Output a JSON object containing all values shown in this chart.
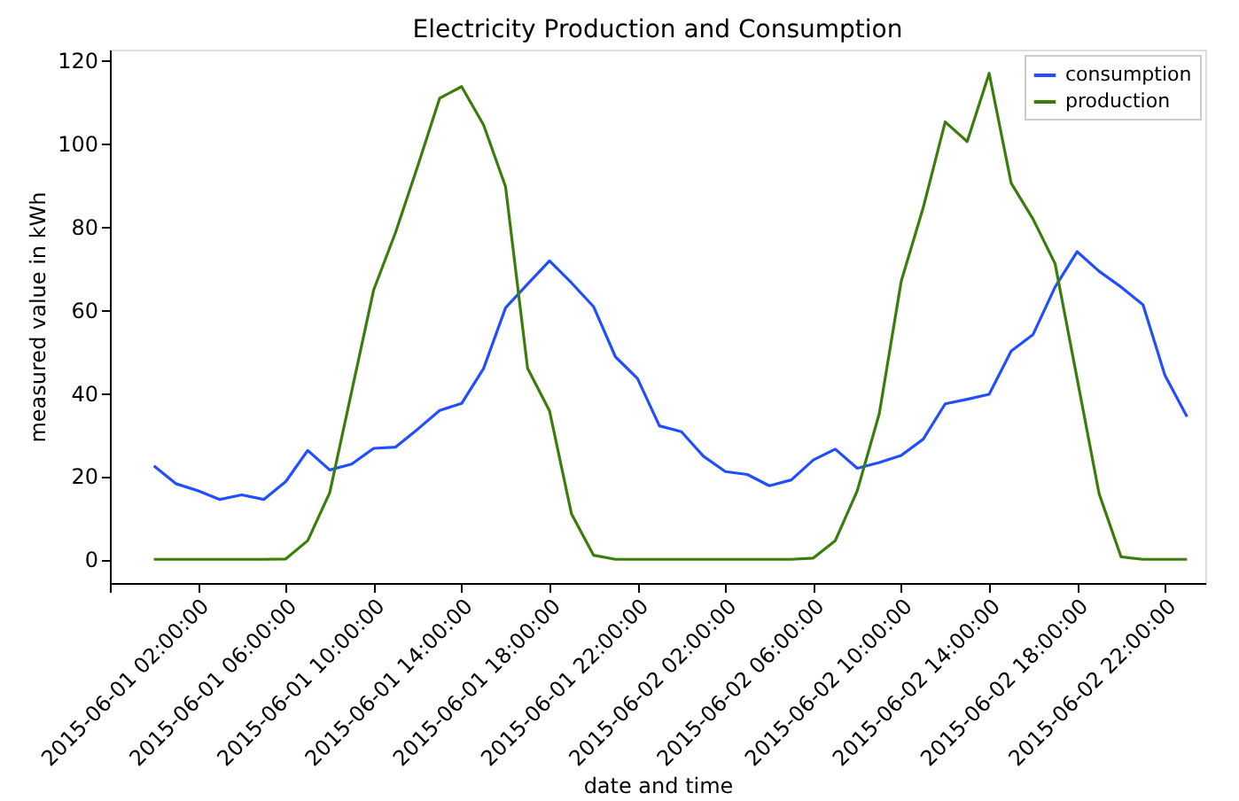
{
  "chart_data": {
    "type": "line",
    "title": "Electricity Production and Consumption",
    "xlabel": "date and time",
    "ylabel": "measured value in kWh",
    "x": [
      "2015-06-01T00:00",
      "2015-06-01T01:00",
      "2015-06-01T02:00",
      "2015-06-01T03:00",
      "2015-06-01T04:00",
      "2015-06-01T05:00",
      "2015-06-01T06:00",
      "2015-06-01T07:00",
      "2015-06-01T08:00",
      "2015-06-01T09:00",
      "2015-06-01T10:00",
      "2015-06-01T11:00",
      "2015-06-01T12:00",
      "2015-06-01T13:00",
      "2015-06-01T14:00",
      "2015-06-01T15:00",
      "2015-06-01T16:00",
      "2015-06-01T17:00",
      "2015-06-01T18:00",
      "2015-06-01T19:00",
      "2015-06-01T20:00",
      "2015-06-01T21:00",
      "2015-06-01T22:00",
      "2015-06-01T23:00",
      "2015-06-02T00:00",
      "2015-06-02T01:00",
      "2015-06-02T02:00",
      "2015-06-02T03:00",
      "2015-06-02T04:00",
      "2015-06-02T05:00",
      "2015-06-02T06:00",
      "2015-06-02T07:00",
      "2015-06-02T08:00",
      "2015-06-02T09:00",
      "2015-06-02T10:00",
      "2015-06-02T11:00",
      "2015-06-02T12:00",
      "2015-06-02T13:00",
      "2015-06-02T14:00",
      "2015-06-02T15:00",
      "2015-06-02T16:00",
      "2015-06-02T17:00",
      "2015-06-02T18:00",
      "2015-06-02T19:00",
      "2015-06-02T20:00",
      "2015-06-02T21:00",
      "2015-06-02T22:00",
      "2015-06-02T23:00"
    ],
    "series": [
      {
        "name": "consumption",
        "color": "#1f4fff",
        "values": [
          22.5,
          18.2,
          16.5,
          14.4,
          15.5,
          14.4,
          18.7,
          26.2,
          21.5,
          22.9,
          26.7,
          27.0,
          31.3,
          35.8,
          37.5,
          45.9,
          60.5,
          66.2,
          71.8,
          66.5,
          60.8,
          48.7,
          43.5,
          32.1,
          30.7,
          24.8,
          21.1,
          20.4,
          17.7,
          19.1,
          23.9,
          26.5,
          21.9,
          23.3,
          25.0,
          28.9,
          37.4,
          38.5,
          39.7,
          50.1,
          54.1,
          65.5,
          74.0,
          69.3,
          65.5,
          61.2,
          44.2,
          34.3
        ]
      },
      {
        "name": "production",
        "color": "#3a7d0a",
        "values": [
          0,
          0,
          0,
          0,
          0,
          0,
          0.1,
          4.5,
          16.0,
          40.4,
          64.8,
          78.7,
          94.5,
          110.9,
          113.7,
          104.5,
          89.6,
          46.0,
          35.7,
          10.9,
          1.0,
          0,
          0,
          0,
          0,
          0,
          0,
          0,
          0,
          0,
          0.3,
          4.5,
          16.5,
          35.0,
          66.9,
          84.6,
          105.2,
          100.5,
          116.9,
          90.5,
          81.8,
          71.1,
          43.5,
          15.8,
          0.6,
          0,
          0,
          0
        ]
      }
    ],
    "xlim": [
      "2015-05-31T22:00",
      "2015-06-02T23:50"
    ],
    "xticks": [
      {
        "value": "2015-05-31T22:00",
        "label": null
      },
      {
        "value": "2015-06-01T02:00",
        "label": "2015-06-01 02:00:00"
      },
      {
        "value": "2015-06-01T06:00",
        "label": "2015-06-01 06:00:00"
      },
      {
        "value": "2015-06-01T10:00",
        "label": "2015-06-01 10:00:00"
      },
      {
        "value": "2015-06-01T14:00",
        "label": "2015-06-01 14:00:00"
      },
      {
        "value": "2015-06-01T18:00",
        "label": "2015-06-01 18:00:00"
      },
      {
        "value": "2015-06-01T22:00",
        "label": "2015-06-01 22:00:00"
      },
      {
        "value": "2015-06-02T02:00",
        "label": "2015-06-02 02:00:00"
      },
      {
        "value": "2015-06-02T06:00",
        "label": "2015-06-02 06:00:00"
      },
      {
        "value": "2015-06-02T10:00",
        "label": "2015-06-02 10:00:00"
      },
      {
        "value": "2015-06-02T14:00",
        "label": "2015-06-02 14:00:00"
      },
      {
        "value": "2015-06-02T18:00",
        "label": "2015-06-02 18:00:00"
      },
      {
        "value": "2015-06-02T22:00",
        "label": "2015-06-02 22:00:00"
      }
    ],
    "ylim": [
      -5.7,
      122.6
    ],
    "yticks": [
      0,
      20,
      40,
      60,
      80,
      100,
      120
    ],
    "grid": false,
    "legend": "top right",
    "line_style": "solid",
    "marker": "none"
  }
}
